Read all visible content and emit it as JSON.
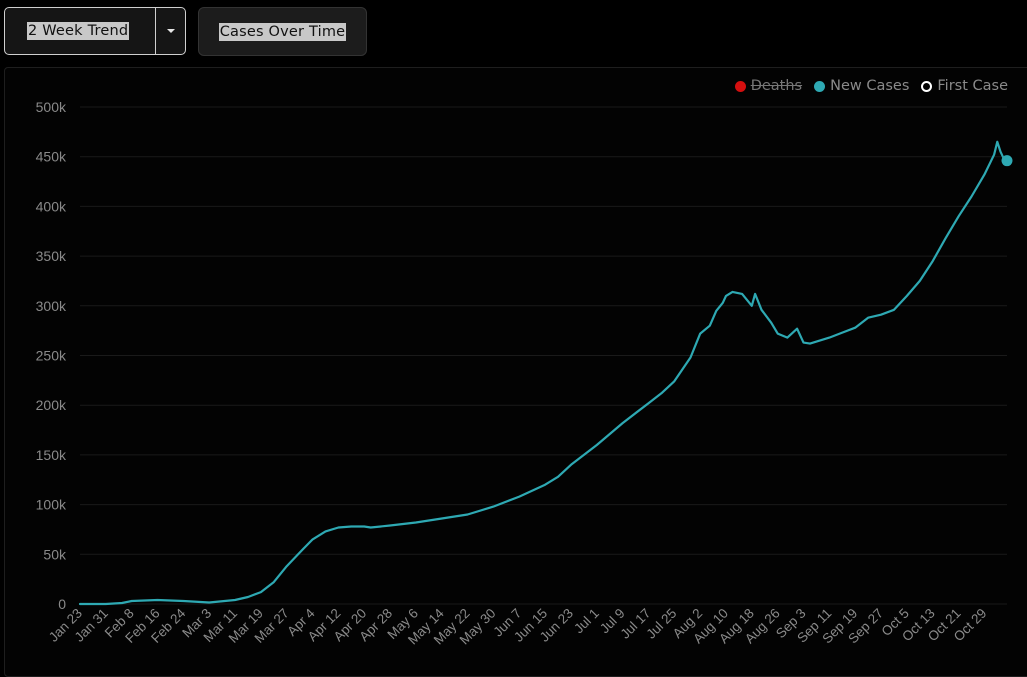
{
  "toolbar": {
    "dropdown_label": "2 Week Trend",
    "button_label": "Cases Over Time"
  },
  "colors": {
    "background": "#000000",
    "new_cases": "#2ea9b3",
    "deaths": "#d40f0f",
    "first_case": "#ffffff",
    "axis_text": "#8a8a8a",
    "grid": "#1a1a1a"
  },
  "chart_data": {
    "type": "line",
    "title": "",
    "xlabel": "",
    "ylabel": "",
    "ylim": [
      0,
      500000
    ],
    "yticks": [
      0,
      50000,
      100000,
      150000,
      200000,
      250000,
      300000,
      350000,
      400000,
      450000,
      500000
    ],
    "ytick_labels": [
      "0",
      "50k",
      "100k",
      "150k",
      "200k",
      "250k",
      "300k",
      "350k",
      "400k",
      "450k",
      "500k"
    ],
    "xtick_labels": [
      "Jan 23",
      "Jan 31",
      "Feb 8",
      "Feb 16",
      "Feb 24",
      "Mar 3",
      "Mar 11",
      "Mar 19",
      "Mar 27",
      "Apr 4",
      "Apr 12",
      "Apr 20",
      "Apr 28",
      "May 6",
      "May 14",
      "May 22",
      "May 30",
      "Jun 7",
      "Jun 15",
      "Jun 23",
      "Jul 1",
      "Jul 9",
      "Jul 17",
      "Jul 25",
      "Aug 2",
      "Aug 10",
      "Aug 18",
      "Aug 26",
      "Sep 3",
      "Sep 11",
      "Sep 19",
      "Sep 27",
      "Oct 5",
      "Oct 13",
      "Oct 21",
      "Oct 29"
    ],
    "grid": true,
    "legend_position": "top-right",
    "legend": [
      {
        "name": "Deaths",
        "color": "#d40f0f",
        "hidden": true
      },
      {
        "name": "New Cases",
        "color": "#2ea9b3",
        "hidden": false
      },
      {
        "name": "First Case",
        "color": "#ffffff",
        "hollow": true,
        "hidden": false
      }
    ],
    "x_start": "Jan 23",
    "x_end": "Nov 5",
    "series": [
      {
        "name": "New Cases",
        "x": [
          "Jan 23",
          "Jan 31",
          "Feb 5",
          "Feb 8",
          "Feb 16",
          "Feb 24",
          "Mar 3",
          "Mar 11",
          "Mar 15",
          "Mar 19",
          "Mar 23",
          "Mar 27",
          "Apr 1",
          "Apr 4",
          "Apr 8",
          "Apr 12",
          "Apr 16",
          "Apr 20",
          "Apr 22",
          "Apr 28",
          "May 6",
          "May 14",
          "May 22",
          "May 30",
          "Jun 7",
          "Jun 15",
          "Jun 19",
          "Jun 23",
          "Jul 1",
          "Jul 9",
          "Jul 17",
          "Jul 21",
          "Jul 25",
          "Jul 30",
          "Aug 2",
          "Aug 5",
          "Aug 7",
          "Aug 9",
          "Aug 10",
          "Aug 12",
          "Aug 15",
          "Aug 18",
          "Aug 19",
          "Aug 21",
          "Aug 24",
          "Aug 26",
          "Aug 29",
          "Sep 1",
          "Sep 3",
          "Sep 5",
          "Sep 8",
          "Sep 11",
          "Sep 15",
          "Sep 19",
          "Sep 23",
          "Sep 27",
          "Oct 1",
          "Oct 5",
          "Oct 9",
          "Oct 13",
          "Oct 17",
          "Oct 21",
          "Oct 25",
          "Oct 29",
          "Nov 1",
          "Nov 2",
          "Nov 3",
          "Nov 4",
          "Nov 5"
        ],
        "values": [
          0,
          0,
          1000,
          3000,
          4000,
          3000,
          1500,
          4000,
          7000,
          12000,
          22000,
          38000,
          55000,
          65000,
          73000,
          77000,
          78000,
          78000,
          77000,
          79000,
          82000,
          86000,
          90000,
          98000,
          108000,
          120000,
          128000,
          140000,
          160000,
          182000,
          202000,
          212000,
          224000,
          248000,
          272000,
          280000,
          295000,
          303000,
          310000,
          314000,
          312000,
          300000,
          312000,
          296000,
          283000,
          272000,
          268000,
          277000,
          263000,
          262000,
          265000,
          268000,
          273000,
          278000,
          288000,
          291000,
          296000,
          310000,
          325000,
          345000,
          368000,
          390000,
          410000,
          432000,
          452000,
          465000,
          455000,
          448000,
          446000
        ]
      }
    ]
  }
}
